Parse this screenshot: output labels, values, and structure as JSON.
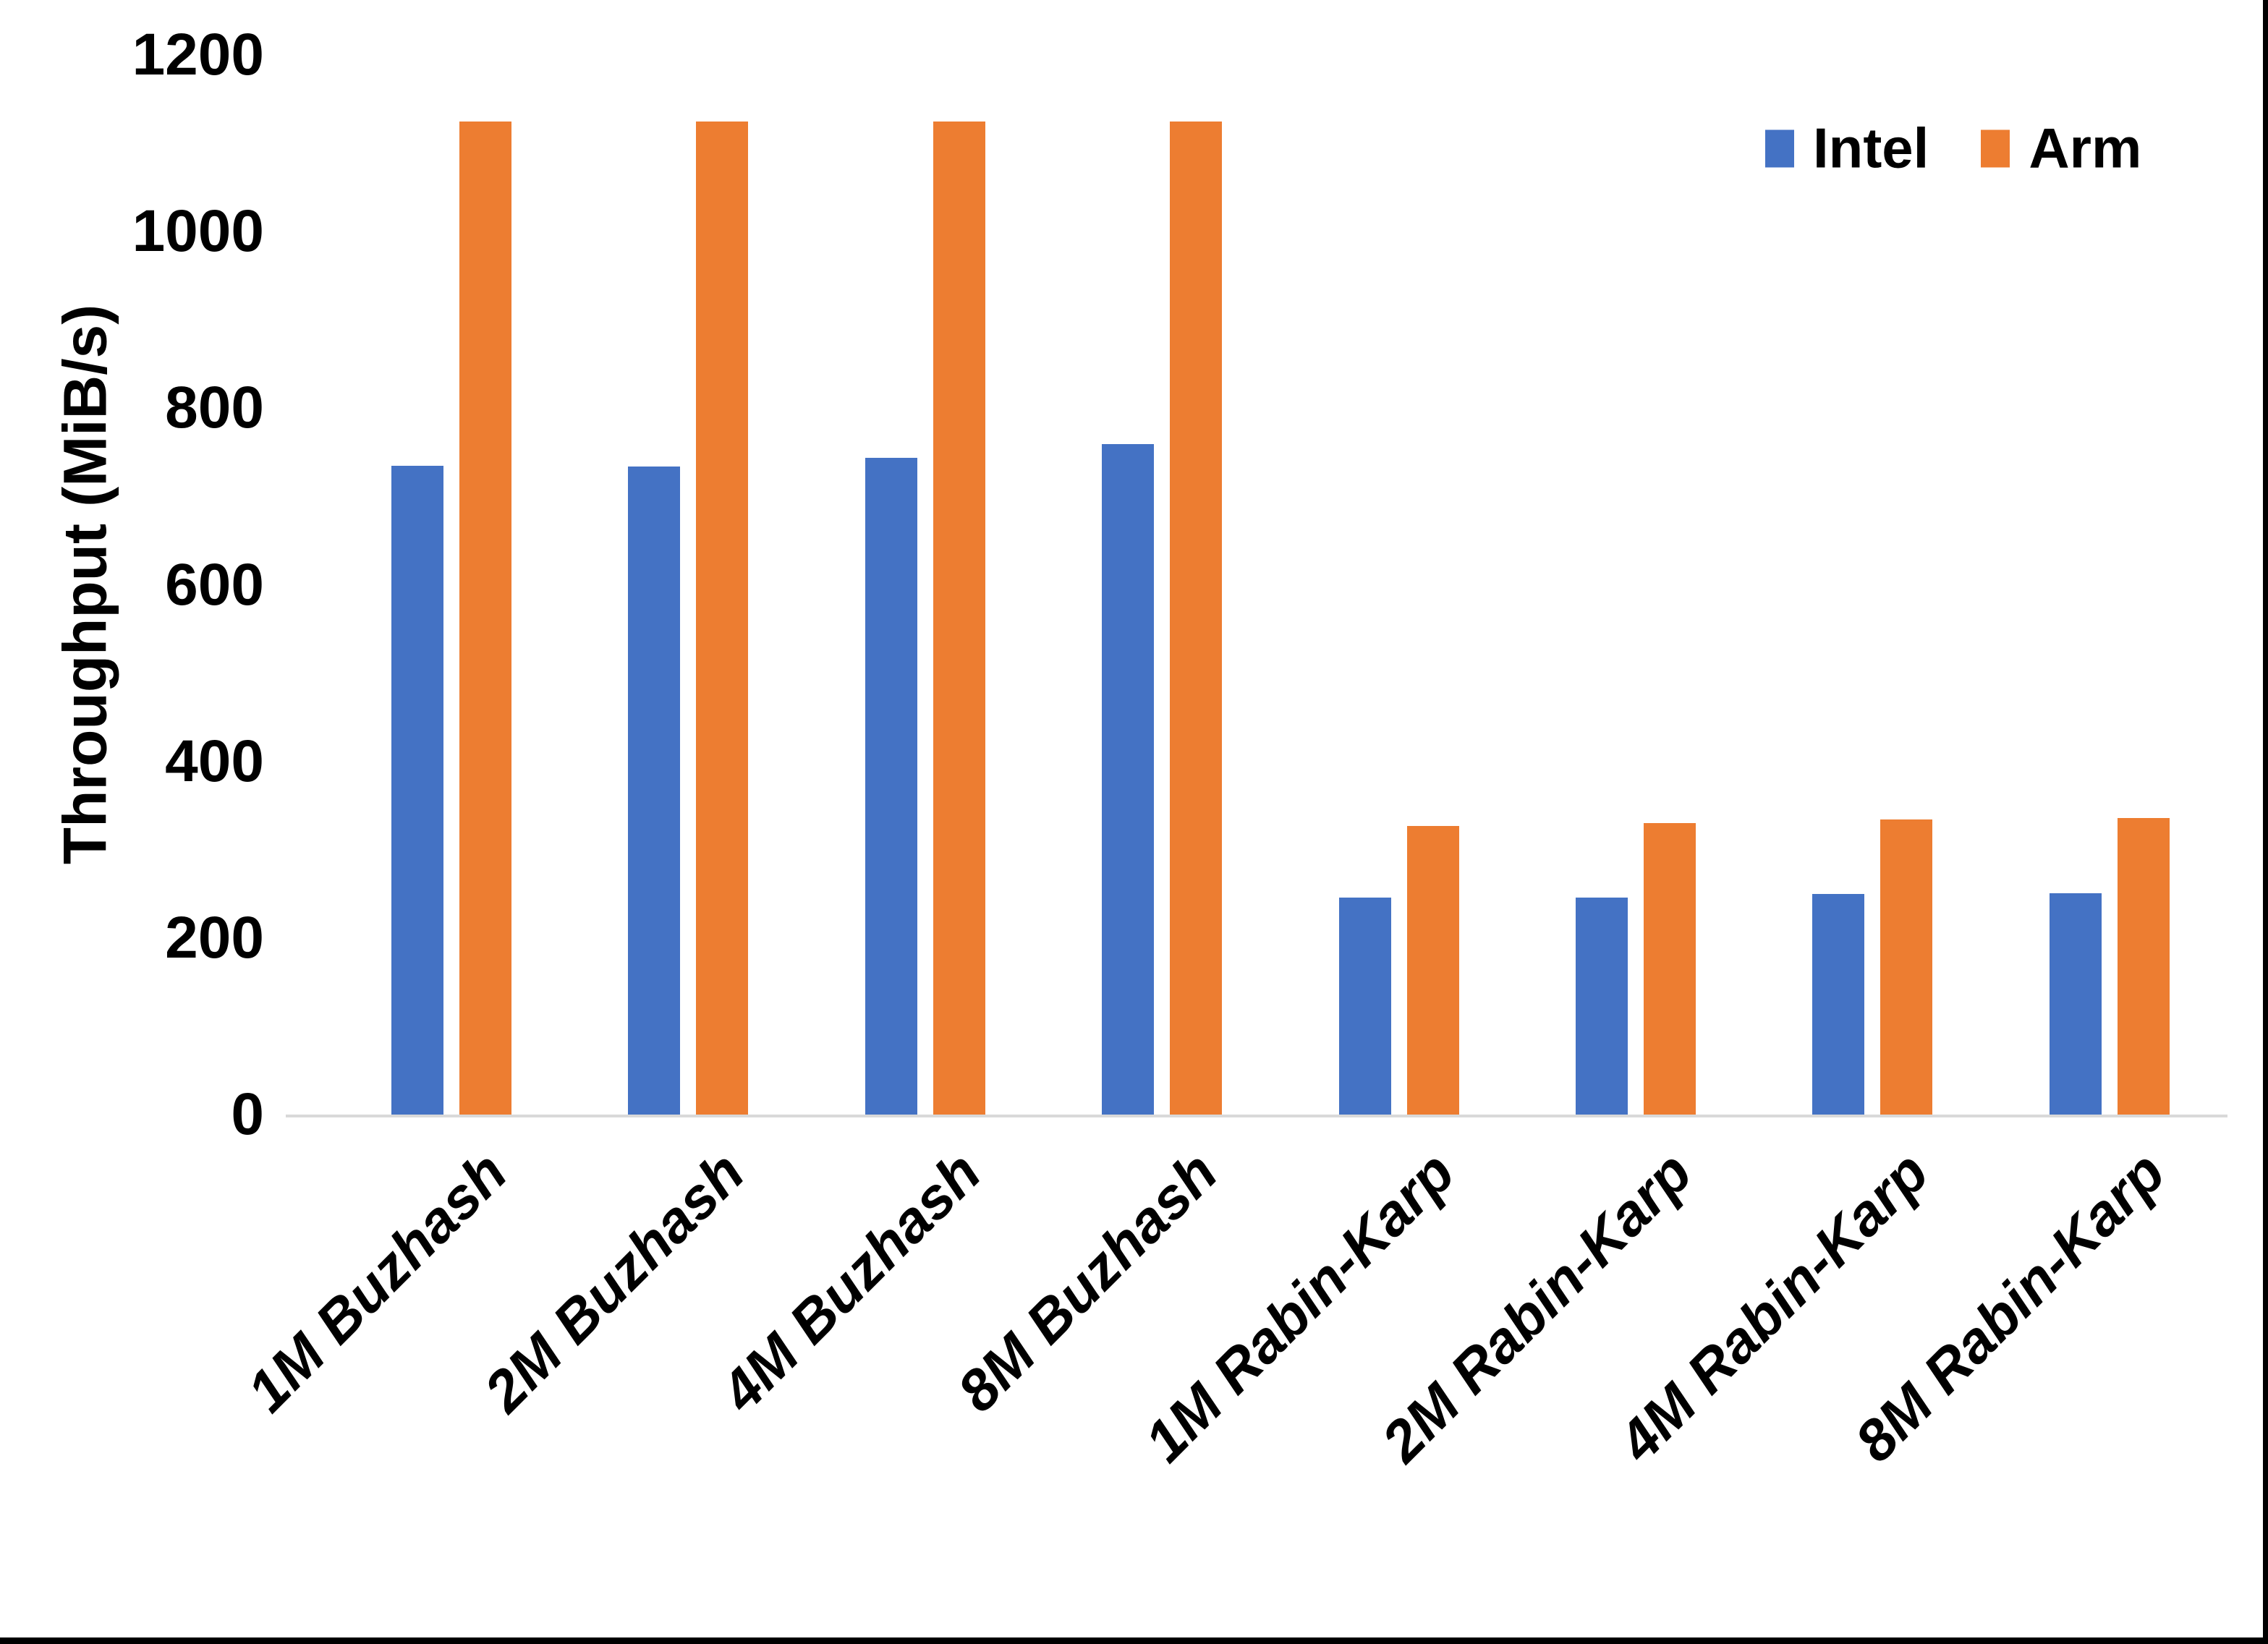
{
  "chart_data": {
    "type": "bar",
    "categories": [
      "1M Buzhash",
      "2M Buzhash",
      "4M Buzhash",
      "8M Buzhash",
      "1M Rabin-Karp",
      "2M Rabin-Karp",
      "4M Rabin-Karp",
      "8M Rabin-Karp"
    ],
    "series": [
      {
        "name": "Intel",
        "color": "#4472C4",
        "values": [
          735,
          734,
          744,
          759,
          246,
          246,
          250,
          251
        ]
      },
      {
        "name": "Arm",
        "color": "#ED7D31",
        "values": [
          1125,
          1125,
          1125,
          1125,
          327,
          330,
          334,
          336
        ]
      }
    ],
    "ylabel": "Throughput (MiB/s)",
    "ylim": [
      0,
      1200
    ],
    "yticks": [
      0,
      200,
      400,
      600,
      800,
      1000,
      1200
    ],
    "grid": false,
    "legend_position": "top-right",
    "colors": {
      "axis_line": "#D9D9D9",
      "text": "#000000",
      "background": "#FFFFFF",
      "page_border": "#000000"
    }
  },
  "legend": {
    "items": [
      {
        "label": "Intel",
        "color": "#4472C4"
      },
      {
        "label": "Arm",
        "color": "#ED7D31"
      }
    ]
  }
}
